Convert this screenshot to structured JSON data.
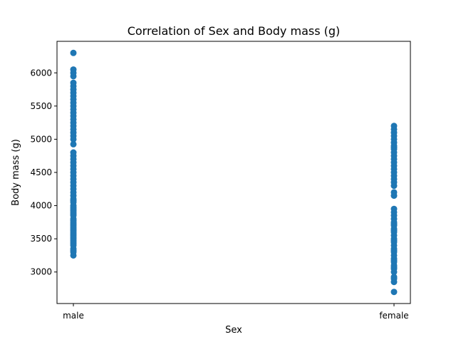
{
  "chart_data": {
    "type": "scatter",
    "title": "Correlation of Sex and Body mass (g)",
    "xlabel": "Sex",
    "ylabel": "Body mass (g)",
    "categories": [
      "male",
      "female"
    ],
    "yticks": [
      3000,
      3500,
      4000,
      4500,
      5000,
      5500,
      6000
    ],
    "ylim": [
      2525,
      6475
    ],
    "grid": false,
    "color": "#1f77b4",
    "series": [
      {
        "values_by_category": {
          "male": [
            3250,
            3300,
            3325,
            3350,
            3400,
            3425,
            3450,
            3475,
            3500,
            3525,
            3550,
            3575,
            3600,
            3625,
            3650,
            3675,
            3700,
            3725,
            3750,
            3775,
            3800,
            3850,
            3875,
            3900,
            3925,
            3950,
            3975,
            4000,
            4050,
            4075,
            4100,
            4150,
            4200,
            4250,
            4300,
            4350,
            4400,
            4450,
            4500,
            4550,
            4600,
            4650,
            4700,
            4750,
            4800,
            4925,
            5000,
            5050,
            5100,
            5150,
            5200,
            5250,
            5300,
            5350,
            5400,
            5450,
            5500,
            5550,
            5600,
            5650,
            5700,
            5750,
            5800,
            5850,
            5950,
            6000,
            6050,
            6300
          ],
          "female": [
            2700,
            2850,
            2900,
            2925,
            3000,
            3050,
            3075,
            3100,
            3150,
            3175,
            3200,
            3250,
            3300,
            3325,
            3350,
            3400,
            3450,
            3475,
            3500,
            3550,
            3600,
            3625,
            3650,
            3700,
            3725,
            3750,
            3800,
            3850,
            3900,
            3950,
            4150,
            4200,
            4300,
            4350,
            4400,
            4450,
            4500,
            4550,
            4600,
            4650,
            4700,
            4750,
            4800,
            4850,
            4875,
            4900,
            4950,
            5000,
            5050,
            5100,
            5150,
            5200
          ]
        }
      }
    ]
  }
}
